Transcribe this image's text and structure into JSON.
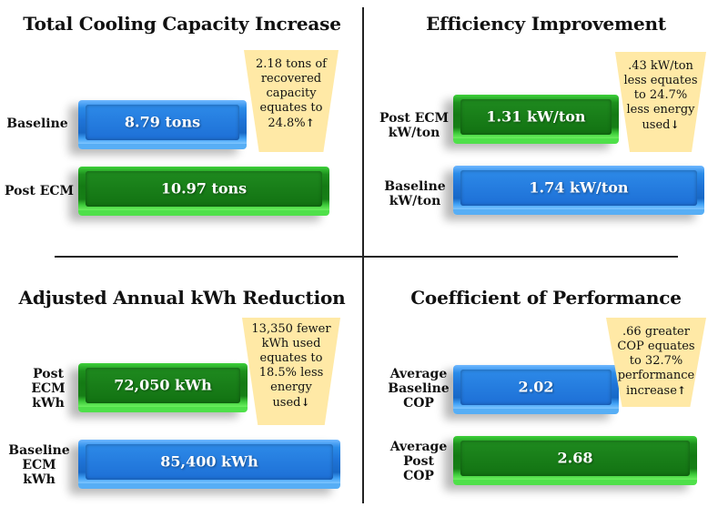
{
  "panels": {
    "capacity": {
      "title": "Total Cooling Capacity Increase",
      "bars": [
        {
          "label": "Baseline",
          "value_text": "8.79 tons",
          "color": "blue"
        },
        {
          "label": "Post ECM",
          "value_text": "10.97 tons",
          "color": "green"
        }
      ],
      "callout": "2.18 tons of\nrecovered\ncapacity\nequates to\n24.8%",
      "callout_arrow": "↑"
    },
    "efficiency": {
      "title": "Efficiency Improvement",
      "bars": [
        {
          "label": "Post ECM\nkW/ton",
          "value_text": "1.31 kW/ton",
          "color": "green"
        },
        {
          "label": "Baseline\nkW/ton",
          "value_text": "1.74 kW/ton",
          "color": "blue"
        }
      ],
      "callout": ".43 kW/ton\nless equates\nto 24.7%\nless energy\nused",
      "callout_arrow": "↓"
    },
    "kwh": {
      "title": "Adjusted Annual kWh Reduction",
      "bars": [
        {
          "label": "Post\nECM\nkWh",
          "value_text": "72,050 kWh",
          "color": "green"
        },
        {
          "label": "Baseline\nECM\nkWh",
          "value_text": "85,400 kWh",
          "color": "blue"
        }
      ],
      "callout": "13,350 fewer\nkWh used\nequates to\n18.5% less\nenergy\nused",
      "callout_arrow": "↓"
    },
    "cop": {
      "title": "Coefficient of Performance",
      "bars": [
        {
          "label": "Average\nBaseline\nCOP",
          "value_text": "2.02",
          "color": "blue"
        },
        {
          "label": "Average\nPost\nCOP",
          "value_text": "2.68",
          "color": "green"
        }
      ],
      "callout": ".66 greater\nCOP equates\nto  32.7%\nperformance\nincrease",
      "callout_arrow": "↑"
    }
  },
  "chart_data": [
    {
      "type": "bar",
      "title": "Total Cooling Capacity Increase",
      "categories": [
        "Baseline",
        "Post ECM"
      ],
      "values": [
        8.79,
        10.97
      ],
      "unit": "tons"
    },
    {
      "type": "bar",
      "title": "Efficiency Improvement",
      "categories": [
        "Post ECM kW/ton",
        "Baseline kW/ton"
      ],
      "values": [
        1.31,
        1.74
      ],
      "unit": "kW/ton"
    },
    {
      "type": "bar",
      "title": "Adjusted Annual kWh Reduction",
      "categories": [
        "Post ECM kWh",
        "Baseline ECM kWh"
      ],
      "values": [
        72050,
        85400
      ],
      "unit": "kWh"
    },
    {
      "type": "bar",
      "title": "Coefficient of Performance",
      "categories": [
        "Average Baseline COP",
        "Average Post COP"
      ],
      "values": [
        2.02,
        2.68
      ]
    }
  ],
  "colors": {
    "blue": "#1f74d8",
    "green": "#147a14",
    "callout": "#ffe9a6"
  }
}
